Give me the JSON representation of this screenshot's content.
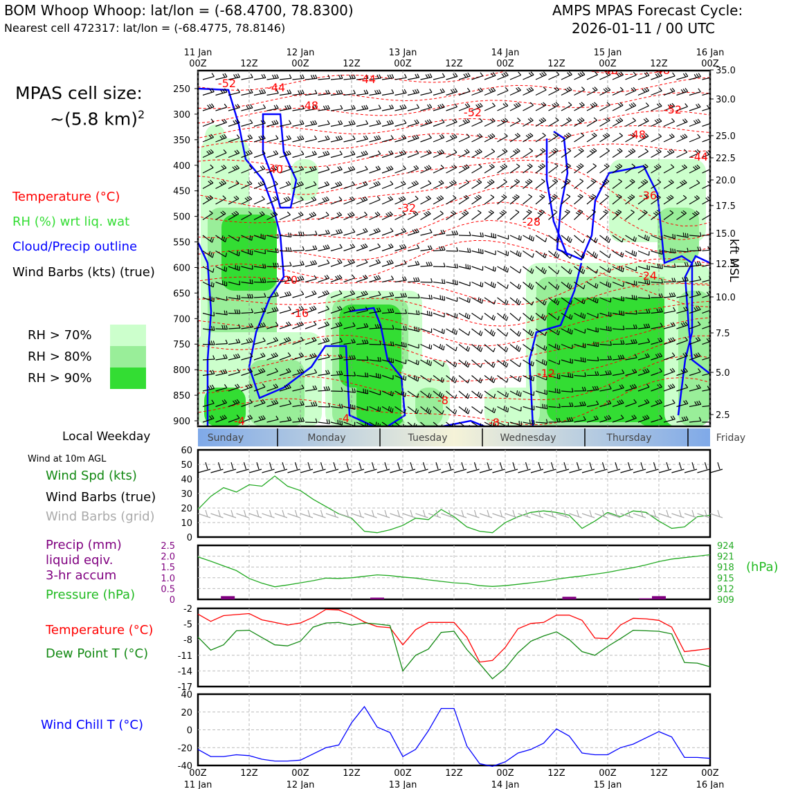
{
  "header": {
    "station": "BOM Whoop Whoop: lat/lon = (-68.4700, 78.8300)",
    "cell": "Nearest cell 472317: lat/lon = (-68.4775, 78.8146)",
    "forecast_title": "AMPS MPAS Forecast Cycle:",
    "forecast_cycle": "2026-01-11 / 00 UTC"
  },
  "sidebar": {
    "cell_size_label": "MPAS cell size:",
    "cell_size_value": "~(5.8 km)",
    "cell_size_exp": "2",
    "legend_temperature": "Temperature (°C)",
    "legend_rh": "RH (%) wrt liq. wat",
    "legend_cloud": "Cloud/Precip outline",
    "legend_barbs": "Wind Barbs (kts) (true)",
    "rh_bins": [
      "RH > 70%",
      "RH > 80%",
      "RH > 90%"
    ],
    "weekday_label": "Local Weekday",
    "wind_10m_label": "Wind at 10m AGL",
    "wind_speed_label": "Wind Spd (kts)",
    "wind_barbs_true": "Wind Barbs (true)",
    "wind_barbs_grid": "Wind Barbs (grid)",
    "precip_label_1": "Precip (mm)",
    "precip_label_2": "liquid eqiv.",
    "precip_label_3": "3-hr accum",
    "pressure_label": "Pressure (hPa)",
    "temp_label": "Temperature (°C)",
    "dewpoint_label": "Dew Point T (°C)",
    "windchill_label": "Wind Chill T (°C)",
    "kft_label": "kft MSL",
    "hpa_unit": "(hPa)"
  },
  "colors": {
    "temperature": "#ff0000",
    "rh": "#33dd33",
    "cloud": "#0000ff",
    "pressure": "#22aa22",
    "dewpoint": "#118811",
    "precip": "#800080",
    "windchill": "#0000ff",
    "rh70": "#ccffcc",
    "rh80": "#99ee99",
    "rh90": "#33dd33"
  },
  "chart_data": [
    {
      "type": "line",
      "name": "time-height cross section",
      "x_ticks_top": [
        [
          "11 Jan",
          "00Z"
        ],
        [
          "",
          "12Z"
        ],
        [
          "12 Jan",
          "00Z"
        ],
        [
          "",
          "12Z"
        ],
        [
          "13 Jan",
          "00Z"
        ],
        [
          "",
          "12Z"
        ],
        [
          "14 Jan",
          "00Z"
        ],
        [
          "",
          "12Z"
        ],
        [
          "15 Jan",
          "00Z"
        ],
        [
          "",
          "12Z"
        ],
        [
          "16 Jan",
          "00Z"
        ]
      ],
      "ylabel_left": "pressure",
      "y_ticks_left": [
        "250",
        "300",
        "350",
        "400",
        "450",
        "500",
        "550",
        "600",
        "650",
        "700",
        "750",
        "800",
        "850",
        "900"
      ],
      "ylabel_right": "kft MSL",
      "y_ticks_right": [
        "35.0",
        "30.0",
        "25.0",
        "22.5",
        "20.0",
        "17.5",
        "15.0",
        "12.5",
        "10.0",
        "7.5",
        "5.0",
        "2.5"
      ],
      "temperature_contour_labels": [
        "-52",
        "-44",
        "-44",
        "-48",
        "-52",
        "-48",
        "-48",
        "-52",
        "-48",
        "-44",
        "-40",
        "-36",
        "-32",
        "-28",
        "-24",
        "-20",
        "-16",
        "-12",
        "-8",
        "-8",
        "-4",
        "-4"
      ],
      "weekdays": [
        "Sunday",
        "Monday",
        "Tuesday",
        "Wednesday",
        "Thursday",
        "Friday"
      ]
    },
    {
      "type": "line",
      "name": "wind speed 10m",
      "y_ticks": [
        "60",
        "50",
        "40",
        "30",
        "20",
        "10",
        "0"
      ],
      "ylim": [
        0,
        60
      ],
      "x": [
        0,
        3,
        6,
        9,
        12,
        15,
        18,
        21,
        24,
        27,
        30,
        33,
        36,
        39,
        42,
        45,
        48,
        51,
        54,
        57,
        60,
        63,
        66,
        69,
        72,
        75,
        78,
        81,
        84,
        87,
        90,
        93,
        96,
        99,
        102,
        105,
        108,
        111,
        114,
        117,
        120
      ],
      "series": [
        {
          "name": "Wind Spd (kts)",
          "values": [
            19,
            28,
            34,
            31,
            36,
            35,
            42,
            35,
            32,
            26,
            21,
            16,
            13,
            4,
            3,
            5,
            8,
            13,
            12,
            19,
            14,
            7,
            4,
            3,
            10,
            14,
            17,
            18,
            17,
            15,
            6,
            11,
            17,
            14,
            18,
            17,
            11,
            6,
            7,
            14,
            15
          ]
        }
      ]
    },
    {
      "type": "line",
      "name": "precip and pressure",
      "y_ticks_left": [
        "2.5",
        "2.0",
        "1.5",
        "1.0",
        "0.5",
        "0"
      ],
      "ylim_left": [
        0,
        2.5
      ],
      "y_ticks_right": [
        "924",
        "921",
        "918",
        "915",
        "912",
        "909"
      ],
      "ylim_right": [
        909,
        924
      ],
      "x": [
        0,
        3,
        6,
        9,
        12,
        15,
        18,
        21,
        24,
        27,
        30,
        33,
        36,
        39,
        42,
        45,
        48,
        51,
        54,
        57,
        60,
        63,
        66,
        69,
        72,
        75,
        78,
        81,
        84,
        87,
        90,
        93,
        96,
        99,
        102,
        105,
        108,
        111,
        114,
        117,
        120
      ],
      "series": [
        {
          "name": "Pressure (hPa)",
          "values": [
            920.8,
            919.6,
            918.3,
            917.0,
            914.8,
            913.5,
            912.5,
            913.0,
            913.6,
            914.2,
            914.9,
            914.8,
            915.0,
            915.4,
            915.8,
            915.6,
            915.2,
            914.9,
            914.4,
            914.0,
            913.6,
            913.4,
            912.8,
            912.6,
            912.8,
            913.2,
            913.6,
            914.0,
            914.6,
            915.1,
            915.5,
            916.0,
            916.5,
            917.2,
            917.8,
            918.6,
            919.5,
            920.2,
            920.6,
            921.0,
            921.4
          ]
        }
      ],
      "precip_bars": [
        {
          "x": 7,
          "value": 0.15
        },
        {
          "x": 42,
          "value": 0.08
        },
        {
          "x": 87,
          "value": 0.12
        },
        {
          "x": 108,
          "value": 0.15
        },
        {
          "x": 105,
          "value": 0.05
        }
      ]
    },
    {
      "type": "line",
      "name": "temperature and dew point",
      "y_ticks": [
        "-2",
        "-5",
        "-8",
        "-11",
        "-14",
        "-17"
      ],
      "ylim": [
        -17,
        -2
      ],
      "x": [
        0,
        3,
        6,
        9,
        12,
        15,
        18,
        21,
        24,
        27,
        30,
        33,
        36,
        39,
        42,
        45,
        48,
        51,
        54,
        57,
        60,
        63,
        66,
        69,
        72,
        75,
        78,
        81,
        84,
        87,
        90,
        93,
        96,
        99,
        102,
        105,
        108,
        111,
        114,
        117,
        120
      ],
      "series": [
        {
          "name": "Temperature (°C)",
          "values": [
            -3.1,
            -4.5,
            -3.4,
            -3.2,
            -3.0,
            -4.2,
            -4.7,
            -5.2,
            -4.8,
            -3.7,
            -2.2,
            -2.3,
            -3.3,
            -4.6,
            -5.5,
            -5.7,
            -9.0,
            -6.1,
            -4.7,
            -4.7,
            -4.7,
            -7.5,
            -12.3,
            -12.0,
            -9.5,
            -5.9,
            -4.9,
            -4.7,
            -3.3,
            -3.3,
            -4.3,
            -7.7,
            -7.8,
            -5.2,
            -3.9,
            -4.0,
            -4.3,
            -5.6,
            -10.3,
            -10.0,
            -9.7
          ]
        },
        {
          "name": "Dew Point T (°C)",
          "values": [
            -7.5,
            -10.0,
            -9.0,
            -6.3,
            -6.2,
            -7.6,
            -9.0,
            -9.2,
            -8.3,
            -5.6,
            -4.8,
            -4.7,
            -5.2,
            -4.8,
            -5.0,
            -5.3,
            -14.0,
            -11.0,
            -9.8,
            -6.6,
            -6.4,
            -9.9,
            -12.6,
            -15.5,
            -13.5,
            -10.5,
            -8.3,
            -7.3,
            -6.5,
            -8.0,
            -10.3,
            -11.0,
            -9.3,
            -7.8,
            -6.2,
            -6.3,
            -6.4,
            -6.9,
            -12.4,
            -12.5,
            -13.2
          ]
        }
      ]
    },
    {
      "type": "line",
      "name": "wind chill",
      "y_ticks": [
        "40",
        "20",
        "0",
        "-20",
        "-40"
      ],
      "ylim": [
        -40,
        40
      ],
      "x": [
        0,
        3,
        6,
        9,
        12,
        15,
        18,
        21,
        24,
        27,
        30,
        33,
        36,
        39,
        42,
        45,
        48,
        51,
        54,
        57,
        60,
        63,
        66,
        69,
        72,
        75,
        78,
        81,
        84,
        87,
        90,
        93,
        96,
        99,
        102,
        105,
        108,
        111,
        114,
        117,
        120
      ],
      "series": [
        {
          "name": "Wind Chill T (°C)",
          "values": [
            -22,
            -30,
            -30,
            -28,
            -29,
            -33,
            -35,
            -35,
            -34,
            -27,
            -20,
            -17,
            8,
            26,
            3,
            -3,
            -30,
            -22,
            -1,
            24,
            24,
            -18,
            -38,
            -41,
            -36,
            -26,
            -22,
            -15,
            1,
            -7,
            -26,
            -28,
            -28,
            -20,
            -16,
            -9,
            -2,
            -8,
            -31,
            -31,
            -32
          ]
        }
      ]
    }
  ],
  "x_ticks_bottom": [
    [
      "00Z",
      "11 Jan"
    ],
    [
      "12Z",
      ""
    ],
    [
      "00Z",
      "12 Jan"
    ],
    [
      "12Z",
      ""
    ],
    [
      "00Z",
      "13 Jan"
    ],
    [
      "12Z",
      ""
    ],
    [
      "00Z",
      "14 Jan"
    ],
    [
      "12Z",
      ""
    ],
    [
      "00Z",
      "15 Jan"
    ],
    [
      "12Z",
      ""
    ],
    [
      "00Z",
      "16 Jan"
    ]
  ]
}
